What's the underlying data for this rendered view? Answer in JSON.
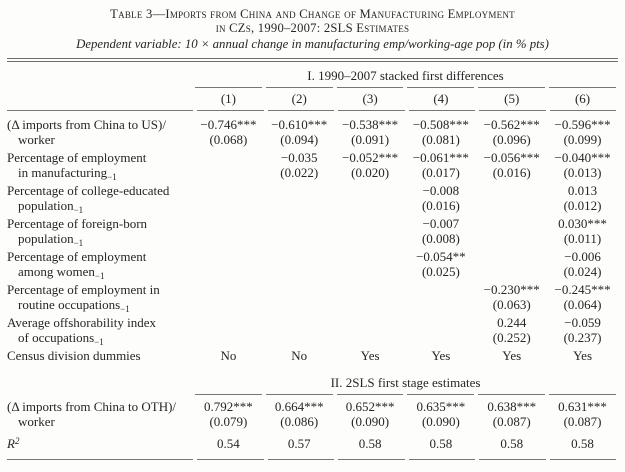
{
  "paper": {
    "title_line1": "Table 3—Imports from China and Change of Manufacturing Employment",
    "title_line2": "in CZs, 1990–2007: 2SLS Estimates",
    "subtitle": "Dependent variable: 10 × annual change in manufacturing emp/working-age pop (in % pts)"
  },
  "columns": [
    "(1)",
    "(2)",
    "(3)",
    "(4)",
    "(5)",
    "(6)"
  ],
  "panel1": {
    "header": "I. 1990–2007 stacked first differences",
    "rows": [
      {
        "label1": "(Δ imports from China to US)/",
        "label2": "worker",
        "values": [
          "−0.746***",
          "−0.610***",
          "−0.538***",
          "−0.508***",
          "−0.562***",
          "−0.596***"
        ],
        "ses": [
          "(0.068)",
          "(0.094)",
          "(0.091)",
          "(0.081)",
          "(0.096)",
          "(0.099)"
        ]
      },
      {
        "label1": "Percentage of employment",
        "label2": "in manufacturing_{−1}",
        "values": [
          "",
          "−0.035",
          "−0.052***",
          "−0.061***",
          "−0.056***",
          "−0.040***"
        ],
        "ses": [
          "",
          "(0.022)",
          "(0.020)",
          "(0.017)",
          "(0.016)",
          "(0.013)"
        ]
      },
      {
        "label1": "Percentage of college-educated",
        "label2": "population_{−1}",
        "values": [
          "",
          "",
          "",
          "−0.008",
          "",
          "0.013"
        ],
        "ses": [
          "",
          "",
          "",
          "(0.016)",
          "",
          "(0.012)"
        ]
      },
      {
        "label1": "Percentage of foreign-born",
        "label2": "population_{−1}",
        "values": [
          "",
          "",
          "",
          "−0.007",
          "",
          "0.030***"
        ],
        "ses": [
          "",
          "",
          "",
          "(0.008)",
          "",
          "(0.011)"
        ]
      },
      {
        "label1": "Percentage of employment",
        "label2": "among women_{−1}",
        "values": [
          "",
          "",
          "",
          "−0.054**",
          "",
          "−0.006"
        ],
        "ses": [
          "",
          "",
          "",
          "(0.025)",
          "",
          "(0.024)"
        ]
      },
      {
        "label1": "Percentage of employment in",
        "label2": "routine occupations_{−1}",
        "values": [
          "",
          "",
          "",
          "",
          "−0.230***",
          "−0.245***"
        ],
        "ses": [
          "",
          "",
          "",
          "",
          "(0.063)",
          "(0.064)"
        ]
      },
      {
        "label1": "Average offshorability index",
        "label2": "of occupations_{−1}",
        "values": [
          "",
          "",
          "",
          "",
          "0.244",
          "−0.059"
        ],
        "ses": [
          "",
          "",
          "",
          "",
          "(0.252)",
          "(0.237)"
        ]
      }
    ],
    "dummies_row": {
      "label": "Census division dummies",
      "values": [
        "No",
        "No",
        "Yes",
        "Yes",
        "Yes",
        "Yes"
      ]
    }
  },
  "panel2": {
    "header": "II. 2SLS first stage estimates",
    "row": {
      "label1": "(Δ imports from China to OTH)/",
      "label2": "worker",
      "values": [
        "0.792***",
        "0.664***",
        "0.652***",
        "0.635***",
        "0.638***",
        "0.631***"
      ],
      "ses": [
        "(0.079)",
        "(0.086)",
        "(0.090)",
        "(0.090)",
        "(0.087)",
        "(0.087)"
      ]
    },
    "r2_row": {
      "label": "R^{2}",
      "values": [
        "0.54",
        "0.57",
        "0.58",
        "0.58",
        "0.58",
        "0.58"
      ]
    }
  }
}
